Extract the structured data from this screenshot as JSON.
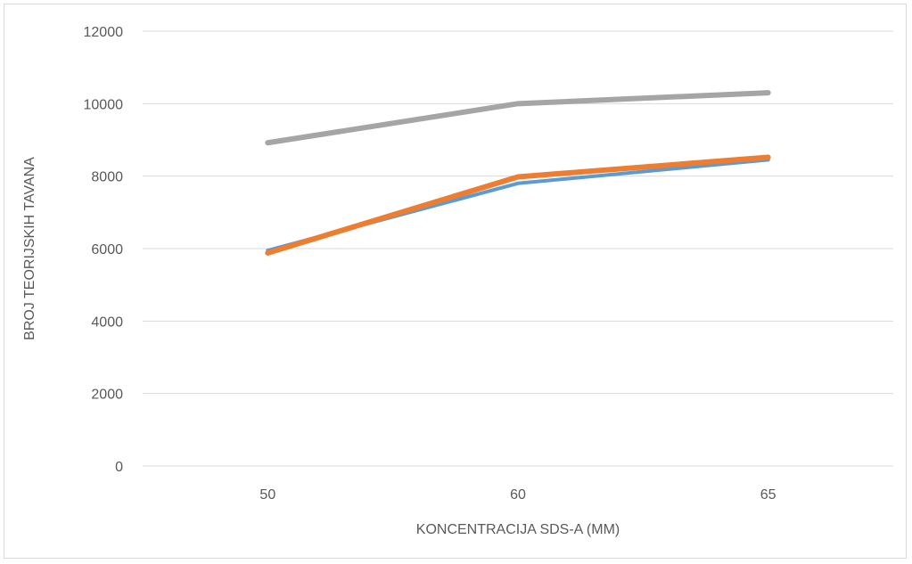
{
  "chart_data": {
    "type": "line",
    "categories": [
      "50",
      "60",
      "65"
    ],
    "xlabel": "KONCENTRACIJA SDS-A (MM)",
    "ylabel": "BROJ TEORIJSKIH TAVANA",
    "ylim": [
      0,
      12000
    ],
    "yticks": [
      0,
      2000,
      4000,
      6000,
      8000,
      10000,
      12000
    ],
    "ytick_labels": [
      "0",
      "2000",
      "4000",
      "6000",
      "8000",
      "10000",
      "12000"
    ],
    "grid": true,
    "legend": "none",
    "series": [
      {
        "values": [
          5950,
          7800,
          8450
        ],
        "color": "#5b9bd5"
      },
      {
        "values": [
          5880,
          7980,
          8520
        ],
        "color": "#ed7d31"
      },
      {
        "values": [
          8920,
          10000,
          10300
        ],
        "color": "#a5a5a5"
      }
    ]
  }
}
